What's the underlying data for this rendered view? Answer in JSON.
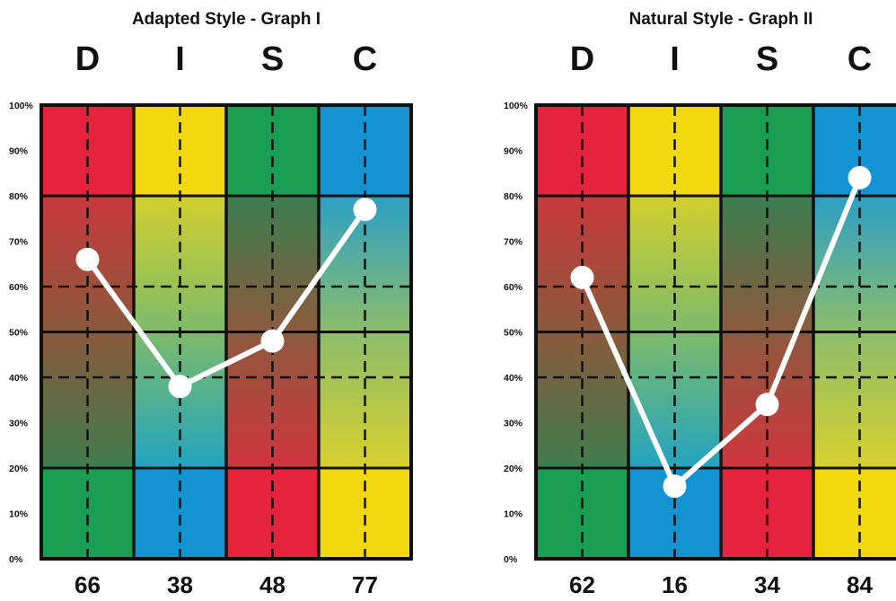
{
  "colors": {
    "red": "#e5233d",
    "yellow": "#f2d80f",
    "green": "#1a9e54",
    "blue": "#1493d3",
    "line": "#ffffff",
    "grid": "#111111"
  },
  "chart_data": [
    {
      "type": "line",
      "title": "Adapted Style - Graph I",
      "categories": [
        "D",
        "I",
        "S",
        "C"
      ],
      "values": [
        66,
        38,
        48,
        77
      ],
      "value_labels": [
        "66",
        "38",
        "48",
        "77"
      ],
      "yticks": [
        "0%",
        "10%",
        "20%",
        "30%",
        "40%",
        "50%",
        "60%",
        "70%",
        "80%",
        "90%",
        "100%"
      ],
      "ylim": [
        0,
        100
      ],
      "grid": true
    },
    {
      "type": "line",
      "title": "Natural Style - Graph II",
      "categories": [
        "D",
        "I",
        "S",
        "C"
      ],
      "values": [
        62,
        16,
        34,
        84
      ],
      "value_labels": [
        "62",
        "16",
        "34",
        "84"
      ],
      "yticks": [
        "0%",
        "10%",
        "20%",
        "30%",
        "40%",
        "50%",
        "60%",
        "70%",
        "80%",
        "90%",
        "100%"
      ],
      "ylim": [
        0,
        100
      ],
      "grid": true
    }
  ]
}
